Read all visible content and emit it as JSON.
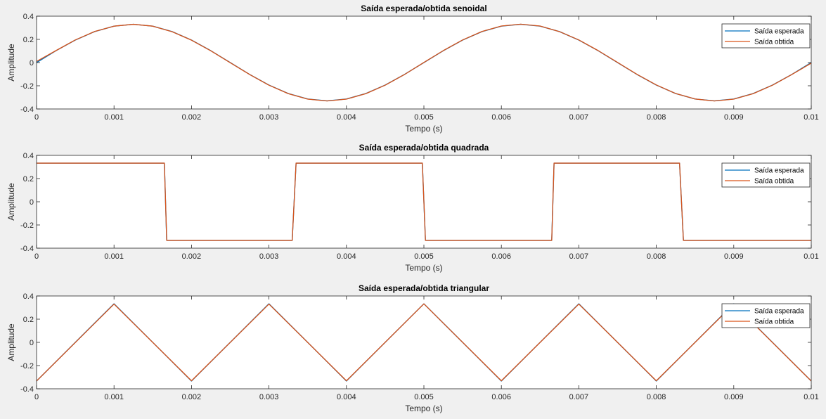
{
  "window": {
    "background": "#f0f0f0"
  },
  "chart_data": [
    {
      "type": "line",
      "title": "Saída esperada/obtida senoidal",
      "xlabel": "Tempo (s)",
      "ylabel": "Amplitude",
      "xlim": [
        0,
        0.01
      ],
      "ylim": [
        -0.4,
        0.4
      ],
      "xticks": [
        0,
        0.001,
        0.002,
        0.003,
        0.004,
        0.005,
        0.006,
        0.007,
        0.008,
        0.009,
        0.01
      ],
      "xtick_labels": [
        "0",
        "0.001",
        "0.002",
        "0.003",
        "0.004",
        "0.005",
        "0.006",
        "0.007",
        "0.008",
        "0.009",
        "0.01"
      ],
      "yticks": [
        -0.4,
        -0.2,
        0,
        0.2,
        0.4
      ],
      "ytick_labels": [
        "-0.4",
        "-0.2",
        "0",
        "0.2",
        "0.4"
      ],
      "grid": false,
      "legend_position": "top-right",
      "series": [
        {
          "name": "Saída esperada",
          "color": "#0072bd",
          "x": [
            0,
            0.00025,
            0.0005,
            0.00075,
            0.001,
            0.00125,
            0.0015,
            0.00175,
            0.002,
            0.00225,
            0.0025,
            0.00275,
            0.003,
            0.00325,
            0.0035,
            0.00375,
            0.004,
            0.00425,
            0.0045,
            0.00475,
            0.005,
            0.00525,
            0.0055,
            0.00575,
            0.006,
            0.00625,
            0.0065,
            0.00675,
            0.007,
            0.00725,
            0.0075,
            0.00775,
            0.008,
            0.00825,
            0.0085,
            0.00875,
            0.009,
            0.00925,
            0.0095,
            0.00975,
            0.01
          ],
          "y": [
            0,
            0.102,
            0.194,
            0.267,
            0.314,
            0.33,
            0.314,
            0.267,
            0.194,
            0.102,
            0,
            -0.102,
            -0.194,
            -0.267,
            -0.314,
            -0.33,
            -0.314,
            -0.267,
            -0.194,
            -0.102,
            0,
            0.102,
            0.194,
            0.267,
            0.314,
            0.33,
            0.314,
            0.267,
            0.194,
            0.102,
            0,
            -0.102,
            -0.194,
            -0.267,
            -0.314,
            -0.33,
            -0.314,
            -0.267,
            -0.194,
            -0.102,
            0
          ]
        },
        {
          "name": "Saída obtida",
          "color": "#d95319",
          "x": [
            0,
            0.00025,
            0.0005,
            0.00075,
            0.001,
            0.00125,
            0.0015,
            0.00175,
            0.002,
            0.00225,
            0.0025,
            0.00275,
            0.003,
            0.00325,
            0.0035,
            0.00375,
            0.004,
            0.00425,
            0.0045,
            0.00475,
            0.005,
            0.00525,
            0.0055,
            0.00575,
            0.006,
            0.00625,
            0.0065,
            0.00675,
            0.007,
            0.00725,
            0.0075,
            0.00775,
            0.008,
            0.00825,
            0.0085,
            0.00875,
            0.009,
            0.00925,
            0.0095,
            0.00975,
            0.01
          ],
          "y": [
            0.01,
            0.103,
            0.195,
            0.268,
            0.314,
            0.33,
            0.314,
            0.266,
            0.193,
            0.101,
            -0.001,
            -0.103,
            -0.195,
            -0.268,
            -0.315,
            -0.331,
            -0.315,
            -0.268,
            -0.195,
            -0.103,
            0.001,
            0.103,
            0.195,
            0.268,
            0.315,
            0.331,
            0.315,
            0.267,
            0.195,
            0.103,
            0.001,
            -0.101,
            -0.193,
            -0.267,
            -0.314,
            -0.331,
            -0.315,
            -0.268,
            -0.195,
            -0.103,
            -0.005
          ]
        }
      ]
    },
    {
      "type": "line",
      "title": "Saída esperada/obtida quadrada",
      "xlabel": "Tempo (s)",
      "ylabel": "Amplitude",
      "xlim": [
        0,
        0.01
      ],
      "ylim": [
        -0.4,
        0.4
      ],
      "xticks": [
        0,
        0.001,
        0.002,
        0.003,
        0.004,
        0.005,
        0.006,
        0.007,
        0.008,
        0.009,
        0.01
      ],
      "xtick_labels": [
        "0",
        "0.001",
        "0.002",
        "0.003",
        "0.004",
        "0.005",
        "0.006",
        "0.007",
        "0.008",
        "0.009",
        "0.01"
      ],
      "yticks": [
        -0.4,
        -0.2,
        0,
        0.2,
        0.4
      ],
      "ytick_labels": [
        "-0.4",
        "-0.2",
        "0",
        "0.2",
        "0.4"
      ],
      "grid": false,
      "legend_position": "top-right",
      "series": [
        {
          "name": "Saída esperada",
          "color": "#0072bd",
          "x": [
            0,
            0.00165,
            0.00168,
            0.0033,
            0.00335,
            0.00498,
            0.00502,
            0.00665,
            0.00668,
            0.0083,
            0.00835,
            0.01
          ],
          "y": [
            0.333,
            0.333,
            -0.333,
            -0.333,
            0.333,
            0.333,
            -0.333,
            -0.333,
            0.333,
            0.333,
            -0.333,
            -0.333
          ]
        },
        {
          "name": "Saída obtida",
          "color": "#d95319",
          "x": [
            0,
            0.00165,
            0.00168,
            0.0033,
            0.00335,
            0.00498,
            0.00502,
            0.00665,
            0.00668,
            0.0083,
            0.00835,
            0.01
          ],
          "y": [
            0.333,
            0.333,
            -0.333,
            -0.333,
            0.333,
            0.333,
            -0.333,
            -0.333,
            0.333,
            0.333,
            -0.333,
            -0.333
          ]
        }
      ]
    },
    {
      "type": "line",
      "title": "Saída esperada/obtida triangular",
      "xlabel": "Tempo (s)",
      "ylabel": "Amplitude",
      "xlim": [
        0,
        0.01
      ],
      "ylim": [
        -0.4,
        0.4
      ],
      "xticks": [
        0,
        0.001,
        0.002,
        0.003,
        0.004,
        0.005,
        0.006,
        0.007,
        0.008,
        0.009,
        0.01
      ],
      "xtick_labels": [
        "0",
        "0.001",
        "0.002",
        "0.003",
        "0.004",
        "0.005",
        "0.006",
        "0.007",
        "0.008",
        "0.009",
        "0.01"
      ],
      "yticks": [
        -0.4,
        -0.2,
        0,
        0.2,
        0.4
      ],
      "ytick_labels": [
        "-0.4",
        "-0.2",
        "0",
        "0.2",
        "0.4"
      ],
      "grid": false,
      "legend_position": "top-right",
      "series": [
        {
          "name": "Saída esperada",
          "color": "#0072bd",
          "x": [
            0,
            0.001,
            0.002,
            0.003,
            0.004,
            0.005,
            0.006,
            0.007,
            0.008,
            0.009,
            0.01
          ],
          "y": [
            -0.333,
            0.333,
            -0.333,
            0.333,
            -0.333,
            0.333,
            -0.333,
            0.333,
            -0.333,
            0.333,
            -0.333
          ]
        },
        {
          "name": "Saída obtida",
          "color": "#d95319",
          "x": [
            0,
            0.001,
            0.002,
            0.003,
            0.004,
            0.005,
            0.006,
            0.007,
            0.008,
            0.009,
            0.01
          ],
          "y": [
            -0.333,
            0.33,
            -0.331,
            0.33,
            -0.331,
            0.332,
            -0.331,
            0.33,
            -0.331,
            0.33,
            -0.333
          ]
        }
      ]
    }
  ]
}
